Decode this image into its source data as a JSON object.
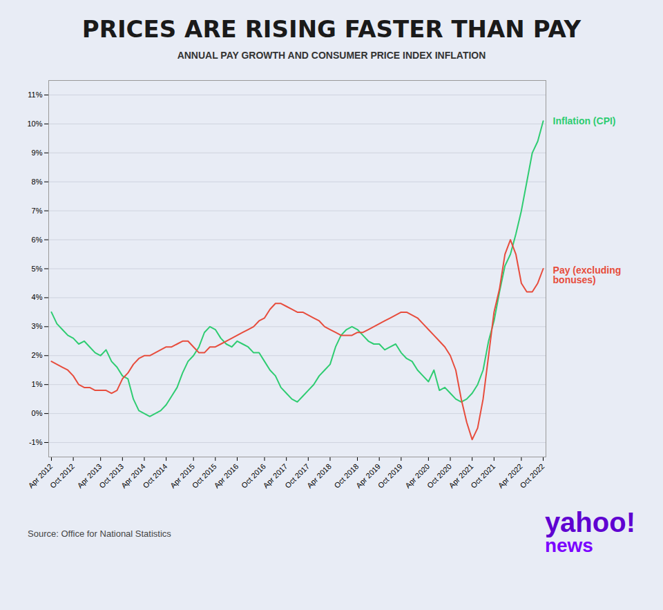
{
  "chart_data": {
    "type": "line",
    "title": "PRICES ARE RISING FASTER THAN PAY",
    "subtitle": "ANNUAL PAY GROWTH AND CONSUMER PRICE INDEX INFLATION",
    "annotations": [
      "Source: Office for National Statistics",
      "yahoo!",
      "news"
    ],
    "categories": [
      "Apr 2012",
      null,
      null,
      null,
      "Oct 2012",
      null,
      null,
      null,
      null,
      "Apr 2013",
      null,
      null,
      null,
      "Oct 2013",
      null,
      null,
      null,
      "Apr 2014",
      null,
      null,
      null,
      "Oct 2014",
      null,
      null,
      null,
      null,
      "Apr 2015",
      null,
      null,
      null,
      "Oct 2015",
      null,
      null,
      null,
      "Apr 2016",
      null,
      null,
      null,
      null,
      "Oct 2016",
      null,
      null,
      null,
      "Apr 2017",
      null,
      null,
      null,
      "Oct 2017",
      null,
      null,
      null,
      "Apr 2018",
      null,
      null,
      null,
      null,
      "Oct 2018",
      null,
      null,
      null,
      "Apr 2019",
      null,
      null,
      null,
      "Oct 2019",
      null,
      null,
      null,
      null,
      "Apr 2020",
      null,
      null,
      null,
      "Oct 2020",
      null,
      null,
      null,
      "Apr 2021",
      null,
      null,
      null,
      "Oct 2021",
      null,
      null,
      null,
      null,
      "Apr 2022",
      null,
      null,
      null,
      "Oct 2022"
    ],
    "series": [
      {
        "name": "Inflation (CPI)",
        "color": "#2ecc71",
        "values": [
          3.5,
          3.1,
          2.9,
          2.7,
          2.6,
          2.4,
          2.5,
          2.3,
          2.1,
          2.0,
          2.2,
          1.8,
          1.6,
          1.3,
          1.2,
          0.5,
          0.1,
          0.0,
          -0.1,
          0.0,
          0.1,
          0.3,
          0.6,
          0.9,
          1.4,
          1.8,
          2.0,
          2.3,
          2.8,
          3.0,
          2.9,
          2.6,
          2.4,
          2.3,
          2.5,
          2.4,
          2.3,
          2.1,
          2.1,
          1.8,
          1.5,
          1.3,
          0.9,
          0.7,
          0.5,
          0.4,
          0.6,
          0.8,
          1.0,
          1.3,
          1.5,
          1.7,
          2.3,
          2.7,
          2.9,
          3.0,
          2.9,
          2.7,
          2.5,
          2.4,
          2.4,
          2.2,
          2.3,
          2.4,
          2.1,
          1.9,
          1.8,
          1.5,
          1.3,
          1.1,
          1.5,
          0.8,
          0.9,
          0.7,
          0.5,
          0.4,
          0.5,
          0.7,
          1.0,
          1.5,
          2.5,
          3.2,
          4.2,
          5.1,
          5.5,
          6.2,
          7.0,
          8.0,
          9.0,
          9.4,
          10.1
        ]
      },
      {
        "name": "Pay (excluding\nbonuses)",
        "color": "#e74c3c",
        "values": [
          1.8,
          1.7,
          1.6,
          1.5,
          1.3,
          1.0,
          0.9,
          0.9,
          0.8,
          0.8,
          0.8,
          0.7,
          0.8,
          1.2,
          1.4,
          1.7,
          1.9,
          2.0,
          2.0,
          2.1,
          2.2,
          2.3,
          2.3,
          2.4,
          2.5,
          2.5,
          2.3,
          2.1,
          2.1,
          2.3,
          2.3,
          2.4,
          2.5,
          2.6,
          2.7,
          2.8,
          2.9,
          3.0,
          3.2,
          3.3,
          3.6,
          3.8,
          3.8,
          3.7,
          3.6,
          3.5,
          3.5,
          3.4,
          3.3,
          3.2,
          3.0,
          2.9,
          2.8,
          2.7,
          2.7,
          2.7,
          2.8,
          2.8,
          2.9,
          3.0,
          3.1,
          3.2,
          3.3,
          3.4,
          3.5,
          3.5,
          3.4,
          3.3,
          3.1,
          2.9,
          2.7,
          2.5,
          2.3,
          2.0,
          1.5,
          0.5,
          -0.3,
          -0.9,
          -0.5,
          0.5,
          2.0,
          3.5,
          4.3,
          5.5,
          6.0,
          5.5,
          4.5,
          4.2,
          4.2,
          4.5,
          5.0
        ]
      }
    ],
    "ylim": [
      -1.5,
      11.5
    ],
    "yticks": [
      {
        "value": -1,
        "label": "-1%"
      },
      {
        "value": 0,
        "label": "0%"
      },
      {
        "value": 1,
        "label": "1%"
      },
      {
        "value": 2,
        "label": "2%"
      },
      {
        "value": 3,
        "label": "3%"
      },
      {
        "value": 4,
        "label": "4%"
      },
      {
        "value": 5,
        "label": "5%"
      },
      {
        "value": 6,
        "label": "6%"
      },
      {
        "value": 7,
        "label": "7%"
      },
      {
        "value": 8,
        "label": "8%"
      },
      {
        "value": 9,
        "label": "9%"
      },
      {
        "value": 10,
        "label": "10%"
      },
      {
        "value": 11,
        "label": "11%"
      }
    ],
    "grid": true
  }
}
